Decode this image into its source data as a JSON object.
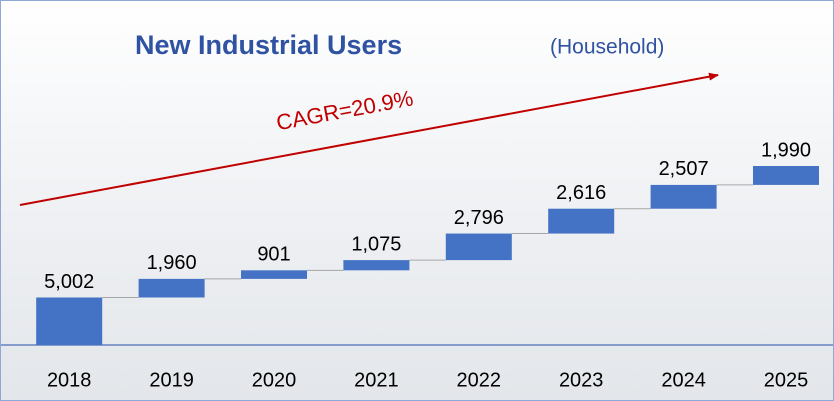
{
  "chart_data": {
    "type": "waterfall",
    "title": "New Industrial Users",
    "subtitle": "(Household)",
    "annotation": "CAGR=20.9%",
    "categories": [
      "2018",
      "2019",
      "2020",
      "2021",
      "2022",
      "2023",
      "2024",
      "2025"
    ],
    "values": [
      5002,
      1960,
      901,
      1075,
      2796,
      2616,
      2507,
      1990
    ],
    "value_labels": [
      "5,002",
      "1,960",
      "901",
      "1,075",
      "2,796",
      "2,616",
      "2,507",
      "1,990"
    ],
    "color": "#4472c4"
  }
}
